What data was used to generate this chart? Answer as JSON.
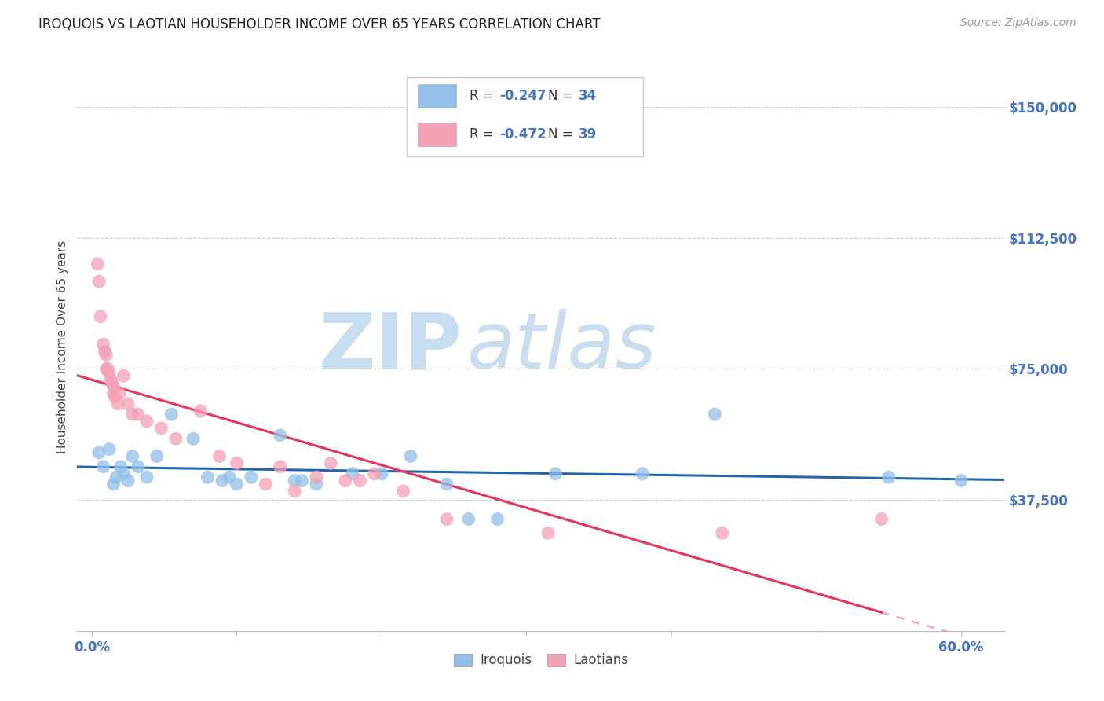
{
  "title": "IROQUOIS VS LAOTIAN HOUSEHOLDER INCOME OVER 65 YEARS CORRELATION CHART",
  "source": "Source: ZipAtlas.com",
  "ylabel_label": "Householder Income Over 65 years",
  "ylabel_ticks": [
    "$37,500",
    "$75,000",
    "$112,500",
    "$150,000"
  ],
  "ylabel_values": [
    37500,
    75000,
    112500,
    150000
  ],
  "ymin": 0,
  "ymax": 162500,
  "xmin": -0.01,
  "xmax": 0.63,
  "iroquois_color": "#92C0E8",
  "laotians_color": "#F4A0B5",
  "iroquois_line_color": "#2166AC",
  "laotians_line_color": "#E8345A",
  "iroquois_x": [
    0.005,
    0.008,
    0.012,
    0.015,
    0.017,
    0.02,
    0.022,
    0.025,
    0.028,
    0.032,
    0.038,
    0.045,
    0.055,
    0.07,
    0.08,
    0.09,
    0.095,
    0.1,
    0.11,
    0.13,
    0.14,
    0.145,
    0.155,
    0.18,
    0.2,
    0.22,
    0.245,
    0.26,
    0.28,
    0.32,
    0.38,
    0.43,
    0.55,
    0.6
  ],
  "iroquois_y": [
    51000,
    47000,
    52000,
    42000,
    44000,
    47000,
    45000,
    43000,
    50000,
    47000,
    44000,
    50000,
    62000,
    55000,
    44000,
    43000,
    44000,
    42000,
    44000,
    56000,
    43000,
    43000,
    42000,
    45000,
    45000,
    50000,
    42000,
    32000,
    32000,
    45000,
    45000,
    62000,
    44000,
    43000
  ],
  "laotians_x": [
    0.004,
    0.005,
    0.006,
    0.008,
    0.009,
    0.01,
    0.01,
    0.011,
    0.012,
    0.013,
    0.014,
    0.015,
    0.015,
    0.016,
    0.018,
    0.019,
    0.022,
    0.025,
    0.028,
    0.032,
    0.038,
    0.048,
    0.058,
    0.075,
    0.088,
    0.1,
    0.12,
    0.13,
    0.14,
    0.155,
    0.165,
    0.175,
    0.185,
    0.195,
    0.215,
    0.245,
    0.315,
    0.435,
    0.545
  ],
  "laotians_y": [
    105000,
    100000,
    90000,
    82000,
    80000,
    79000,
    75000,
    75000,
    74000,
    72000,
    71000,
    70000,
    68000,
    67000,
    65000,
    68000,
    73000,
    65000,
    62000,
    62000,
    60000,
    58000,
    55000,
    63000,
    50000,
    48000,
    42000,
    47000,
    40000,
    44000,
    48000,
    43000,
    43000,
    45000,
    40000,
    32000,
    28000,
    28000,
    32000
  ],
  "legend_iroquois_r": "-0.247",
  "legend_iroquois_n": "34",
  "legend_laotians_r": "-0.472",
  "legend_laotians_n": "39",
  "watermark_zip": "ZIP",
  "watermark_atlas": "atlas",
  "bottom_labels": [
    "Iroquois",
    "Laotians"
  ]
}
